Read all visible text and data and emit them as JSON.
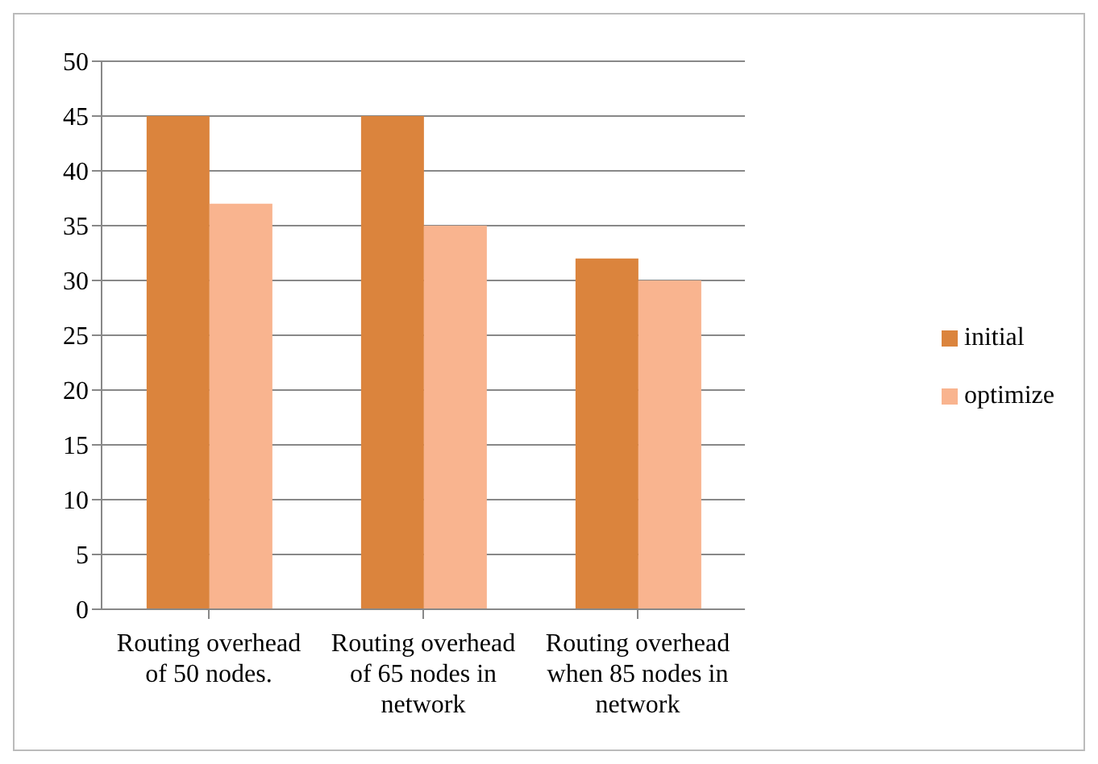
{
  "chart_data": {
    "type": "bar",
    "categories": [
      "Routing overhead of 50 nodes.",
      "Routing overhead of 65 nodes in network",
      "Routing overhead when 85 nodes in network"
    ],
    "series": [
      {
        "name": "initial",
        "color": "#db843d",
        "values": [
          45,
          45,
          32
        ]
      },
      {
        "name": "optimize",
        "color": "#f9b48f",
        "values": [
          37,
          35,
          30
        ]
      }
    ],
    "ylim": [
      0,
      50
    ],
    "yticks": [
      0,
      5,
      10,
      15,
      20,
      25,
      30,
      35,
      40,
      45,
      50
    ],
    "grid": "y",
    "legend": "right"
  }
}
